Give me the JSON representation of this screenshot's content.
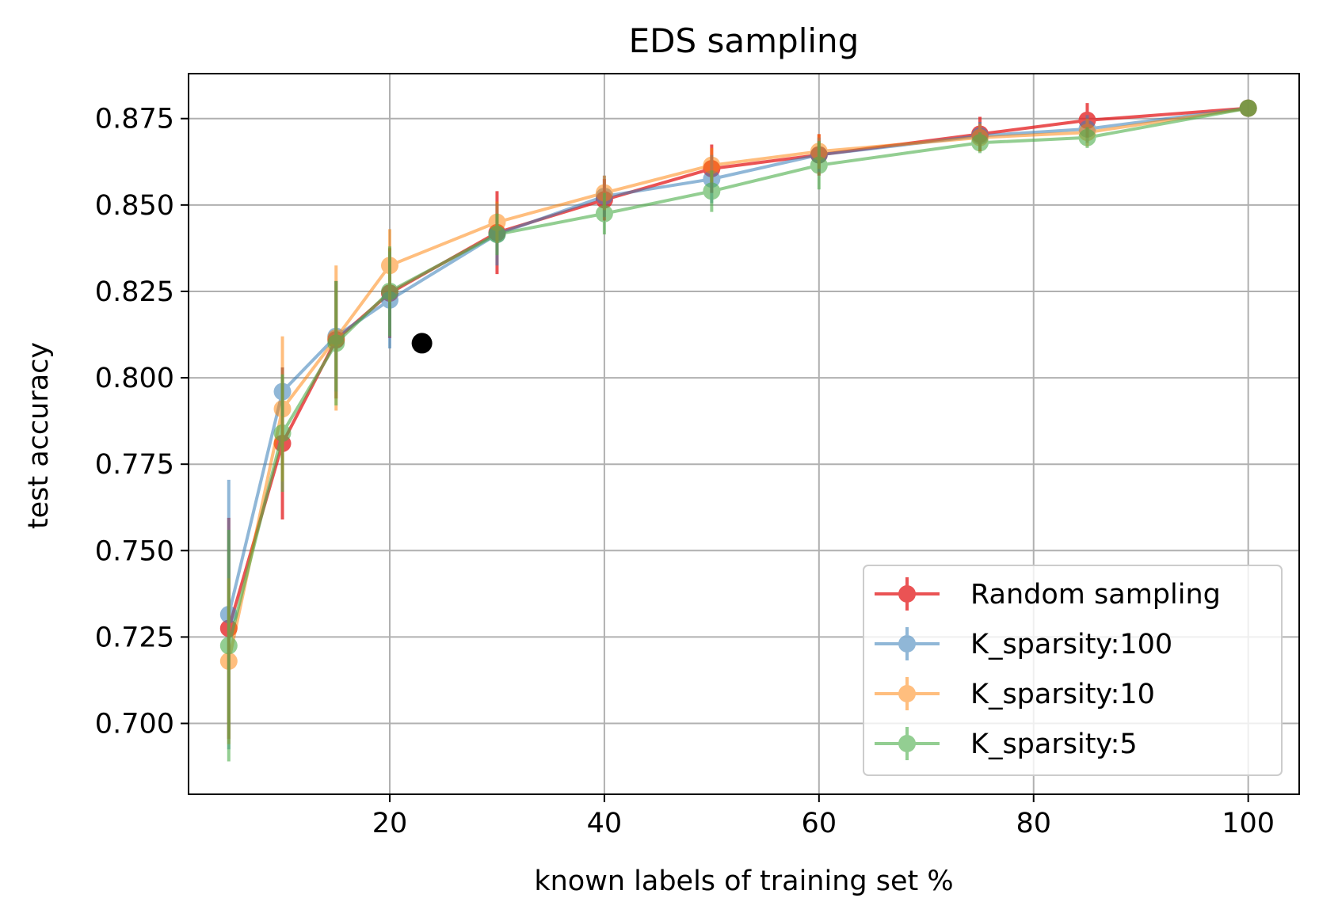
{
  "chart_data": {
    "type": "line",
    "title": "EDS sampling",
    "xlabel": "known labels of training set %",
    "ylabel": "test accuracy",
    "xlim": [
      1.25,
      104.75
    ],
    "ylim": [
      0.6795,
      0.888
    ],
    "xticks": [
      20,
      40,
      60,
      80,
      100
    ],
    "xtick_labels": [
      "20",
      "40",
      "60",
      "80",
      "100"
    ],
    "yticks": [
      0.7,
      0.725,
      0.75,
      0.775,
      0.8,
      0.825,
      0.85,
      0.875
    ],
    "ytick_labels": [
      "0.700",
      "0.725",
      "0.750",
      "0.775",
      "0.800",
      "0.825",
      "0.850",
      "0.875"
    ],
    "grid": true,
    "legend_position": "lower-right",
    "x": [
      5,
      10,
      15,
      20,
      30,
      40,
      50,
      60,
      75,
      85,
      100
    ],
    "series": [
      {
        "name": "Random sampling",
        "color": "#e41a1c",
        "opacity": 0.75,
        "values": [
          0.7275,
          0.781,
          0.811,
          0.8245,
          0.842,
          0.8515,
          0.8605,
          0.8645,
          0.8705,
          0.8745,
          0.878
        ],
        "errors": [
          0.032,
          0.022,
          0.017,
          0.013,
          0.012,
          0.006,
          0.007,
          0.006,
          0.005,
          0.005,
          0.001
        ]
      },
      {
        "name": "K_sparsity:100",
        "color": "#377eb8",
        "opacity": 0.55,
        "values": [
          0.7315,
          0.796,
          0.812,
          0.8225,
          0.8415,
          0.8525,
          0.8575,
          0.8645,
          0.87,
          0.872,
          0.878
        ],
        "errors": [
          0.039,
          0.007,
          0.016,
          0.014,
          0.009,
          0.006,
          0.007,
          0.005,
          0.004,
          0.004,
          0.001
        ]
      },
      {
        "name": "K_sparsity:10",
        "color": "#ff7f00",
        "opacity": 0.5,
        "values": [
          0.718,
          0.791,
          0.8115,
          0.8325,
          0.845,
          0.8535,
          0.8615,
          0.8655,
          0.8695,
          0.871,
          0.878
        ],
        "errors": [
          0.024,
          0.021,
          0.021,
          0.0105,
          0.006,
          0.005,
          0.005,
          0.005,
          0.004,
          0.004,
          0.001
        ]
      },
      {
        "name": "K_sparsity:5",
        "color": "#4daf4a",
        "opacity": 0.6,
        "values": [
          0.7225,
          0.784,
          0.81,
          0.825,
          0.8415,
          0.8475,
          0.854,
          0.8615,
          0.868,
          0.8695,
          0.878
        ],
        "errors": [
          0.0335,
          0.017,
          0.018,
          0.013,
          0.006,
          0.006,
          0.006,
          0.007,
          0.003,
          0.003,
          0.001
        ]
      }
    ],
    "extra_points": [
      {
        "x": 23,
        "y": 0.81,
        "color": "#000000"
      }
    ]
  }
}
